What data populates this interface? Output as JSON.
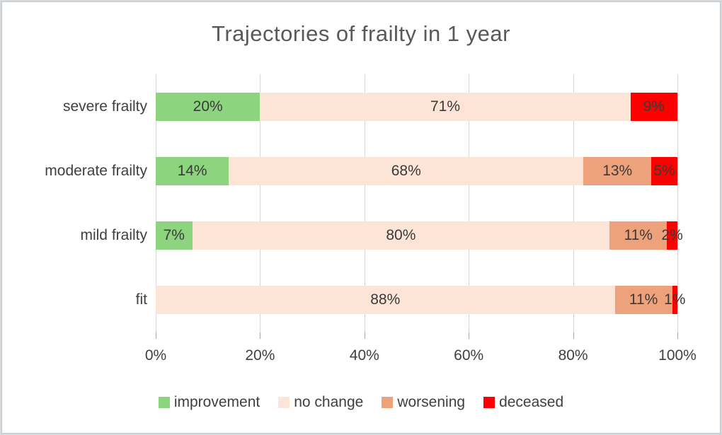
{
  "title": "Trajectories of frailty in 1 year",
  "colors": {
    "improvement": "#8CD47E",
    "no_change": "#FCE4D6",
    "worsening": "#EEA27C",
    "deceased": "#FE0000",
    "title_text": "#595959",
    "label_text": "#404040",
    "gridline": "#D6D6D6"
  },
  "chart_data": {
    "type": "bar",
    "orientation": "horizontal",
    "stacked": true,
    "title": "Trajectories of frailty in 1 year",
    "categories": [
      "severe frailty",
      "moderate frailty",
      "mild frailty",
      "fit"
    ],
    "series": [
      {
        "name": "improvement",
        "color": "#8CD47E",
        "values": [
          20,
          14,
          7,
          0
        ]
      },
      {
        "name": "no change",
        "color": "#FCE4D6",
        "values": [
          71,
          68,
          80,
          88
        ]
      },
      {
        "name": "worsening",
        "color": "#EEA27C",
        "values": [
          0,
          13,
          11,
          11
        ]
      },
      {
        "name": "deceased",
        "color": "#FE0000",
        "values": [
          9,
          5,
          2,
          1
        ]
      }
    ],
    "data_labels": {
      "severe frailty": [
        "20%",
        "71%",
        "",
        "9%"
      ],
      "moderate frailty": [
        "14%",
        "68%",
        "13%",
        "5%"
      ],
      "mild frailty": [
        "7%",
        "80%",
        "11%",
        "2%"
      ],
      "fit": [
        "",
        "88%",
        "11%",
        "1%"
      ]
    },
    "xlabel": "",
    "ylabel": "",
    "xlim": [
      0,
      100
    ],
    "xticks": [
      "0%",
      "20%",
      "40%",
      "60%",
      "80%",
      "100%"
    ],
    "grid": true,
    "legend_position": "bottom",
    "legend_items": [
      "improvement",
      "no change",
      "worsening",
      "deceased"
    ]
  }
}
